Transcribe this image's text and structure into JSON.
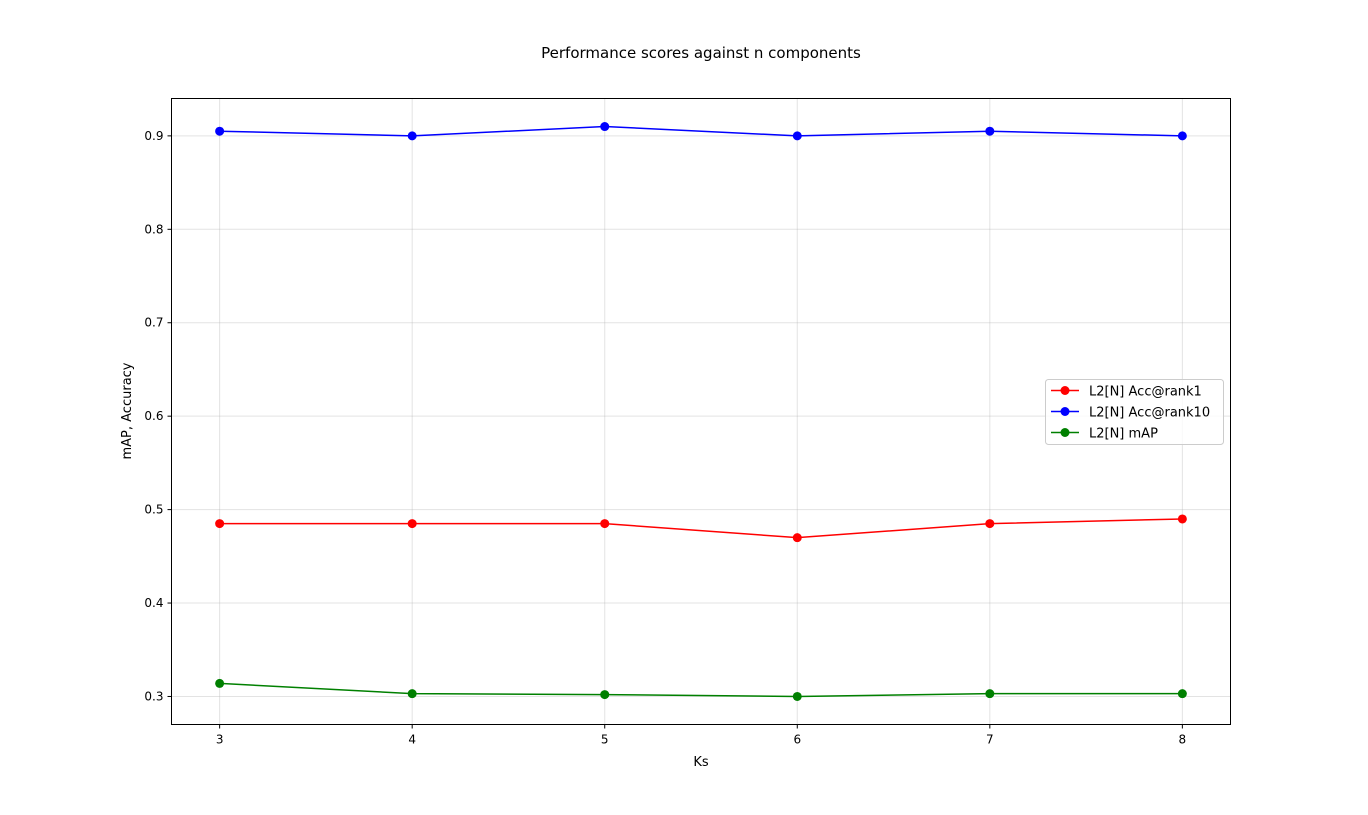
{
  "chart_data": {
    "type": "line",
    "title": "Performance scores against n components",
    "xlabel": "Ks",
    "ylabel": "mAP, Accuracy",
    "x": [
      3,
      4,
      5,
      6,
      7,
      8
    ],
    "xlim": [
      2.75,
      8.25
    ],
    "ylim": [
      0.27,
      0.94
    ],
    "xticks": [
      "3",
      "4",
      "5",
      "6",
      "7",
      "8"
    ],
    "yticks": [
      "0.3",
      "0.4",
      "0.5",
      "0.6",
      "0.7",
      "0.8",
      "0.9"
    ],
    "grid": true,
    "legend_position": "center-right",
    "series": [
      {
        "name": "L2[N] Acc@rank1",
        "color": "#ff0000",
        "marker": "circle",
        "values": [
          0.485,
          0.485,
          0.485,
          0.47,
          0.485,
          0.49
        ]
      },
      {
        "name": "L2[N] Acc@rank10",
        "color": "#0000ff",
        "marker": "circle",
        "values": [
          0.905,
          0.9,
          0.91,
          0.9,
          0.905,
          0.9
        ]
      },
      {
        "name": "L2[N] mAP",
        "color": "#008000",
        "marker": "circle",
        "values": [
          0.314,
          0.303,
          0.302,
          0.3,
          0.303,
          0.303
        ]
      }
    ]
  }
}
